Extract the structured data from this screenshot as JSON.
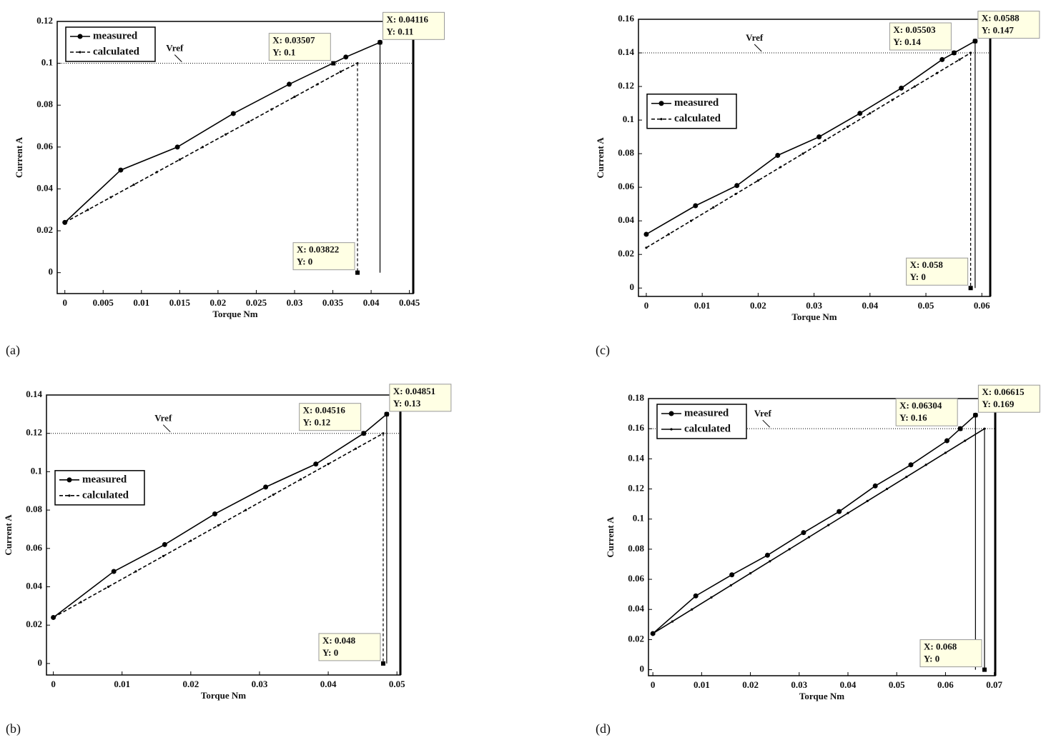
{
  "chart_data": [
    {
      "type": "line",
      "label": "(a)",
      "xlabel": "Torque Nm",
      "ylabel": "Current A",
      "legend": "upper left",
      "xlim": [
        -0.001,
        0.0455
      ],
      "ylim": [
        -0.01,
        0.12
      ],
      "xticks": [
        0,
        0.005,
        0.01,
        0.015,
        0.02,
        0.025,
        0.03,
        0.035,
        0.04,
        0.045
      ],
      "yticks": [
        0,
        0.02,
        0.04,
        0.06,
        0.08,
        0.1,
        0.12
      ],
      "series": [
        {
          "name": "measured",
          "color": "#000000",
          "dash": false,
          "marker": "circle",
          "x": [
            0,
            0.0073,
            0.0147,
            0.022,
            0.0293,
            0.0367,
            0.04116
          ],
          "values": [
            0.024,
            0.049,
            0.06,
            0.076,
            0.09,
            0.103,
            0.11
          ]
        },
        {
          "name": "calculated",
          "color": "#000000",
          "dash": true,
          "marker": "dot",
          "x": [
            0,
            0.003,
            0.006,
            0.009,
            0.012,
            0.015,
            0.018,
            0.021,
            0.024,
            0.027,
            0.03,
            0.033,
            0.036,
            0.03822
          ],
          "values": [
            0.024,
            0.03,
            0.036,
            0.042,
            0.048,
            0.054,
            0.06,
            0.066,
            0.072,
            0.078,
            0.084,
            0.09,
            0.096,
            0.1
          ]
        }
      ],
      "vref": {
        "y": 0.1,
        "label": "Vref"
      },
      "drop_lines": [
        {
          "x": 0.03822,
          "y": 0.1,
          "dash": true
        },
        {
          "x": 0.04116,
          "y": 0.11,
          "dash": false
        }
      ],
      "datatips": [
        {
          "x": 0.03507,
          "y": 0.1,
          "x_label": "X: 0.03507",
          "y_label": "Y: 0.1"
        },
        {
          "x": 0.04116,
          "y": 0.11,
          "x_label": "X: 0.04116",
          "y_label": "Y: 0.11"
        },
        {
          "x": 0.03822,
          "y": 0,
          "x_label": "X: 0.03822",
          "y_label": "Y: 0"
        }
      ]
    },
    {
      "type": "line",
      "label": "(b)",
      "xlabel": "Torque Nm",
      "ylabel": "Current A",
      "legend": "center left",
      "xlim": [
        -0.001,
        0.0505
      ],
      "ylim": [
        -0.006,
        0.14
      ],
      "xticks": [
        0,
        0.01,
        0.02,
        0.03,
        0.04,
        0.05
      ],
      "yticks": [
        0,
        0.02,
        0.04,
        0.06,
        0.08,
        0.1,
        0.12,
        0.14
      ],
      "series": [
        {
          "name": "measured",
          "color": "#000000",
          "dash": false,
          "marker": "circle",
          "x": [
            0,
            0.0088,
            0.0162,
            0.0235,
            0.0309,
            0.0382,
            0.04516,
            0.04851
          ],
          "values": [
            0.024,
            0.048,
            0.062,
            0.078,
            0.092,
            0.104,
            0.12,
            0.13
          ]
        },
        {
          "name": "calculated",
          "color": "#000000",
          "dash": true,
          "marker": "dot",
          "x": [
            0,
            0.004,
            0.008,
            0.012,
            0.016,
            0.02,
            0.024,
            0.028,
            0.032,
            0.036,
            0.04,
            0.044,
            0.048
          ],
          "values": [
            0.024,
            0.032,
            0.04,
            0.048,
            0.056,
            0.064,
            0.072,
            0.08,
            0.088,
            0.096,
            0.104,
            0.112,
            0.12
          ]
        }
      ],
      "vref": {
        "y": 0.12,
        "label": "Vref"
      },
      "drop_lines": [
        {
          "x": 0.048,
          "y": 0.12,
          "dash": true
        },
        {
          "x": 0.04851,
          "y": 0.13,
          "dash": false
        }
      ],
      "datatips": [
        {
          "x": 0.04516,
          "y": 0.12,
          "x_label": "X: 0.04516",
          "y_label": "Y: 0.12"
        },
        {
          "x": 0.04851,
          "y": 0.13,
          "x_label": "X: 0.04851",
          "y_label": "Y: 0.13"
        },
        {
          "x": 0.048,
          "y": 0,
          "x_label": "X: 0.048",
          "y_label": "Y: 0"
        }
      ]
    },
    {
      "type": "line",
      "label": "(c)",
      "xlabel": "Torque Nm",
      "ylabel": "Current A",
      "legend": "center left",
      "xlim": [
        -0.0014,
        0.0615
      ],
      "ylim": [
        -0.005,
        0.16
      ],
      "xticks": [
        0,
        0.01,
        0.02,
        0.03,
        0.04,
        0.05,
        0.06
      ],
      "yticks": [
        0,
        0.02,
        0.04,
        0.06,
        0.08,
        0.1,
        0.12,
        0.14,
        0.16
      ],
      "series": [
        {
          "name": "measured",
          "color": "#000000",
          "dash": false,
          "marker": "circle",
          "x": [
            0,
            0.0088,
            0.0162,
            0.0235,
            0.0309,
            0.0382,
            0.0456,
            0.0529,
            0.05503,
            0.0588
          ],
          "values": [
            0.032,
            0.049,
            0.061,
            0.079,
            0.09,
            0.104,
            0.119,
            0.136,
            0.14,
            0.147
          ]
        },
        {
          "name": "calculated",
          "color": "#000000",
          "dash": true,
          "marker": "dot",
          "x": [
            0,
            0.004,
            0.008,
            0.012,
            0.016,
            0.02,
            0.024,
            0.028,
            0.032,
            0.036,
            0.04,
            0.044,
            0.048,
            0.052,
            0.056,
            0.058
          ],
          "values": [
            0.024,
            0.032,
            0.04,
            0.048,
            0.056,
            0.064,
            0.072,
            0.08,
            0.088,
            0.096,
            0.104,
            0.112,
            0.12,
            0.128,
            0.136,
            0.14
          ]
        }
      ],
      "vref": {
        "y": 0.14,
        "label": "Vref"
      },
      "drop_lines": [
        {
          "x": 0.058,
          "y": 0.14,
          "dash": true
        },
        {
          "x": 0.0588,
          "y": 0.147,
          "dash": false
        }
      ],
      "datatips": [
        {
          "x": 0.05503,
          "y": 0.14,
          "x_label": "X: 0.05503",
          "y_label": "Y: 0.14"
        },
        {
          "x": 0.0588,
          "y": 0.147,
          "x_label": "X: 0.0588",
          "y_label": "Y: 0.147"
        },
        {
          "x": 0.058,
          "y": 0,
          "x_label": "X: 0.058",
          "y_label": "Y: 0"
        }
      ]
    },
    {
      "type": "line",
      "label": "(d)",
      "xlabel": "Torque Nm",
      "ylabel": "Current A",
      "legend": "upper left",
      "xlim": [
        -0.0009,
        0.0702
      ],
      "ylim": [
        -0.004,
        0.18
      ],
      "xticks": [
        0,
        0.01,
        0.02,
        0.03,
        0.04,
        0.05,
        0.06,
        0.07
      ],
      "yticks": [
        0,
        0.02,
        0.04,
        0.06,
        0.08,
        0.1,
        0.12,
        0.14,
        0.16,
        0.18
      ],
      "series": [
        {
          "name": "measured",
          "color": "#000000",
          "dash": false,
          "marker": "circle",
          "x": [
            0,
            0.0088,
            0.0162,
            0.0235,
            0.0309,
            0.0382,
            0.0456,
            0.0529,
            0.0603,
            0.06304,
            0.06615
          ],
          "values": [
            0.024,
            0.049,
            0.063,
            0.076,
            0.091,
            0.105,
            0.122,
            0.136,
            0.152,
            0.16,
            0.169
          ]
        },
        {
          "name": "calculated",
          "color": "#000000",
          "dash": false,
          "marker": "dot",
          "x": [
            0,
            0.004,
            0.008,
            0.012,
            0.016,
            0.02,
            0.024,
            0.028,
            0.032,
            0.036,
            0.04,
            0.044,
            0.048,
            0.052,
            0.056,
            0.06,
            0.064,
            0.068
          ],
          "values": [
            0.024,
            0.032,
            0.04,
            0.048,
            0.056,
            0.064,
            0.072,
            0.08,
            0.088,
            0.096,
            0.104,
            0.112,
            0.12,
            0.128,
            0.136,
            0.144,
            0.152,
            0.16
          ]
        }
      ],
      "vref": {
        "y": 0.16,
        "label": "Vref"
      },
      "drop_lines": [
        {
          "x": 0.06615,
          "y": 0.169,
          "dash": false
        },
        {
          "x": 0.068,
          "y": 0.16,
          "dash": false
        }
      ],
      "datatips": [
        {
          "x": 0.06304,
          "y": 0.16,
          "x_label": "X: 0.06304",
          "y_label": "Y: 0.16"
        },
        {
          "x": 0.06615,
          "y": 0.169,
          "x_label": "X: 0.06615",
          "y_label": "Y: 0.169"
        },
        {
          "x": 0.068,
          "y": 0,
          "x_label": "X: 0.068",
          "y_label": "Y: 0"
        }
      ]
    }
  ]
}
